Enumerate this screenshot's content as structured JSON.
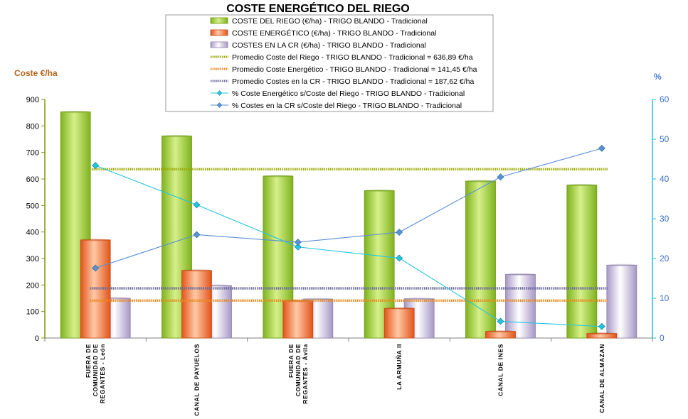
{
  "chart_data": {
    "type": "bar",
    "title": "COSTE ENERGÉTICO DEL RIEGO",
    "ylabel": "Coste €/ha",
    "y2label": "%",
    "ylim": [
      0,
      900
    ],
    "y_ticks": [
      0,
      100,
      200,
      300,
      400,
      500,
      600,
      700,
      800,
      900
    ],
    "y2lim": [
      0,
      60
    ],
    "y2_ticks": [
      0,
      10,
      20,
      30,
      40,
      50,
      60
    ],
    "categories": [
      [
        "FUERA DE",
        "COMUNIDAD DE",
        "REGANTES - León"
      ],
      [
        "CANAL DE PAYUELOS"
      ],
      [
        "FUERA DE",
        "COMUNIDAD DE",
        "REGANTES - Ávila"
      ],
      [
        "LA ARMUÑA II"
      ],
      [
        "CANAL DE INES"
      ],
      [
        "CANAL DE ALMAZAN"
      ]
    ],
    "series": [
      {
        "name": "COSTE DEL RIEGO (€/ha) - TRIGO BLANDO - Tradicional",
        "kind": "bar",
        "axis": "left",
        "color": "#9acd32",
        "values": [
          853,
          762,
          611,
          556,
          592,
          577
        ]
      },
      {
        "name": "COSTE ENERGÉTICO (€/ha) - TRIGO BLANDO - Tradicional",
        "kind": "bar",
        "axis": "left",
        "color": "#f26522",
        "values": [
          370,
          255,
          140,
          112,
          25,
          17
        ]
      },
      {
        "name": "COSTES EN LA CR (€/ha) - TRIGO BLANDO - Tradicional",
        "kind": "bar",
        "axis": "left",
        "color": "#a99bc4",
        "values": [
          150,
          198,
          147,
          148,
          240,
          275
        ]
      },
      {
        "name": "Promedio Coste del Riego - TRIGO BLANDO - Tradicional = 636,89 €/ha",
        "kind": "hline",
        "axis": "left",
        "color": "#9aa800",
        "value": 636.89
      },
      {
        "name": "Promedio Coste Energético - TRIGO BLANDO - Tradicional = 141,45 €/ha",
        "kind": "hline",
        "axis": "left",
        "color": "#e8891f",
        "value": 141.45
      },
      {
        "name": "Promedio Costes en la CR - TRIGO BLANDO - Tradicional = 187,62 €/ha",
        "kind": "hline",
        "axis": "left",
        "color": "#6a6a9a",
        "value": 187.62
      },
      {
        "name": "% Coste Energético s/Coste del Riego - TRIGO BLANDO - Tradicional",
        "kind": "line",
        "axis": "right",
        "color": "#22c5e0",
        "values": [
          43.4,
          33.5,
          22.9,
          20.1,
          4.2,
          2.9
        ]
      },
      {
        "name": "% Costes en la CR s/Coste del Riego - TRIGO BLANDO - Tradicional",
        "kind": "line",
        "axis": "right",
        "color": "#5b8fd6",
        "values": [
          17.6,
          26.0,
          24.1,
          26.6,
          40.5,
          47.7
        ]
      }
    ],
    "grid": false,
    "legend": "top-center"
  }
}
